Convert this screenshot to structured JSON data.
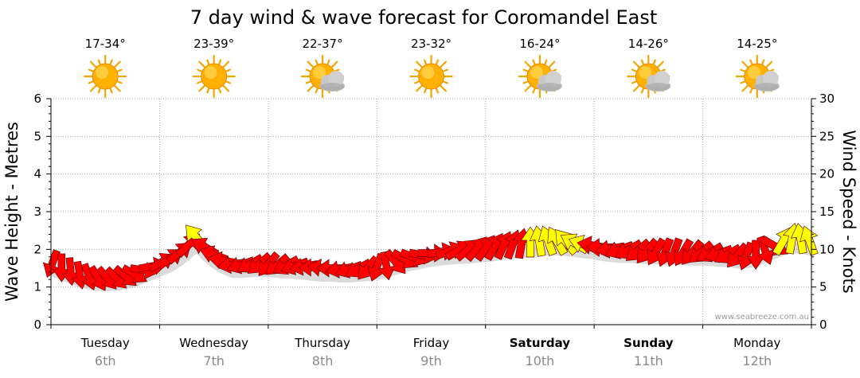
{
  "chart_data": {
    "type": "line",
    "title": "7 day wind & wave forecast for Coromandel East",
    "y_left_label": "Wave Height - Metres",
    "y_right_label": "Wind Speed - Knots",
    "y_left_ticks": [
      "0",
      "1",
      "2",
      "3",
      "4",
      "5",
      "6"
    ],
    "y_right_ticks": [
      "0",
      "5",
      "10",
      "15",
      "20",
      "25",
      "30"
    ],
    "ylim_left": [
      0,
      6
    ],
    "ylim_right": [
      0,
      30
    ],
    "grid": true,
    "credit": "www.seabreeze.com.au",
    "days": [
      {
        "name": "Tuesday",
        "date": "6th",
        "bold": false,
        "temp": "17-34°",
        "icon": "sun-icon"
      },
      {
        "name": "Wednesday",
        "date": "7th",
        "bold": false,
        "temp": "23-39°",
        "icon": "sun-icon"
      },
      {
        "name": "Thursday",
        "date": "8th",
        "bold": false,
        "temp": "22-37°",
        "icon": "sun-cloud-icon"
      },
      {
        "name": "Friday",
        "date": "9th",
        "bold": false,
        "temp": "23-32°",
        "icon": "sun-icon"
      },
      {
        "name": "Saturday",
        "date": "10th",
        "bold": true,
        "temp": "16-24°",
        "icon": "sun-cloud-icon"
      },
      {
        "name": "Sunday",
        "date": "11th",
        "bold": true,
        "temp": "14-26°",
        "icon": "sun-cloud-icon"
      },
      {
        "name": "Monday",
        "date": "12th",
        "bold": false,
        "temp": "14-25°",
        "icon": "sun-cloud-icon"
      }
    ],
    "colors": {
      "light_wind": "#ff0000",
      "strong_wind": "#ffff00",
      "wave_line": "#444444",
      "grid": "#aaaaaa"
    },
    "series": [
      {
        "wind_knots": [
          8.2,
          7.8,
          7.5,
          7.0,
          6.5,
          6.3,
          6.0,
          6.2,
          6.5,
          6.8,
          7.5,
          8.2,
          8.8,
          9.4,
          10.2,
          11.5,
          12.4,
          10.5,
          9.0,
          8.3,
          8.0,
          8.3,
          8.6,
          8.5,
          8.3,
          8.2,
          8.5,
          8.6,
          8.2,
          8.0,
          8.2,
          8.5,
          8.0,
          7.8,
          7.6,
          7.9,
          8.2,
          8.6,
          9.0,
          9.3,
          9.5,
          9.8,
          10.2,
          10.5,
          10.7,
          11.0,
          10.4,
          10.2,
          10.3,
          10.6,
          11.0,
          11.5,
          11.8,
          12.0,
          12.5,
          12.8,
          13.0,
          12.8,
          12.5,
          12.0,
          11.4,
          11.0,
          10.6,
          10.3,
          10.5,
          10.6,
          10.7,
          10.5,
          10.4,
          10.3,
          10.5,
          10.6,
          10.4,
          10.2,
          9.9,
          9.6,
          9.4,
          9.3,
          9.5,
          10.2,
          11.5,
          13.2,
          13.0,
          12.6,
          12.2
        ],
        "wind_dir_deg": [
          200,
          180,
          175,
          170,
          160,
          150,
          140,
          135,
          130,
          120,
          100,
          80,
          60,
          55,
          50,
          45,
          320,
          300,
          290,
          280,
          260,
          250,
          240,
          230,
          220,
          230,
          240,
          250,
          260,
          270,
          280,
          270,
          260,
          250,
          240,
          220,
          200,
          170,
          140,
          120,
          110,
          100,
          90,
          80,
          70,
          60,
          50,
          40,
          35,
          30,
          25,
          20,
          10,
          0,
          350,
          340,
          330,
          320,
          300,
          290,
          280,
          270,
          260,
          250,
          240,
          230,
          220,
          210,
          200,
          200,
          210,
          220,
          230,
          240,
          250,
          240,
          220,
          200,
          180,
          160,
          120,
          30,
          10,
          350,
          340
        ],
        "wave_m": [
          1.65,
          1.55,
          1.45,
          1.35,
          1.3,
          1.25,
          1.25,
          1.25,
          1.3,
          1.35,
          1.45,
          1.55,
          1.65,
          1.75,
          1.9,
          2.1,
          2.3,
          2.05,
          1.85,
          1.7,
          1.6,
          1.6,
          1.62,
          1.63,
          1.62,
          1.6,
          1.58,
          1.57,
          1.55,
          1.52,
          1.5,
          1.5,
          1.48,
          1.48,
          1.5,
          1.52,
          1.55,
          1.6,
          1.68,
          1.75,
          1.8,
          1.85,
          1.9,
          1.93,
          1.95,
          1.97,
          1.98,
          2.0,
          2.02,
          2.05,
          2.08,
          2.1,
          2.12,
          2.15,
          2.18,
          2.2,
          2.2,
          2.18,
          2.15,
          2.12,
          2.1,
          2.05,
          2.02,
          2.0,
          2.0,
          1.98,
          1.97,
          1.96,
          1.95,
          1.95,
          1.94,
          1.93,
          1.93,
          1.92,
          1.9,
          1.88,
          1.85,
          1.85,
          1.9,
          2.0,
          2.1,
          2.2,
          2.25,
          2.25,
          2.2
        ]
      }
    ]
  }
}
